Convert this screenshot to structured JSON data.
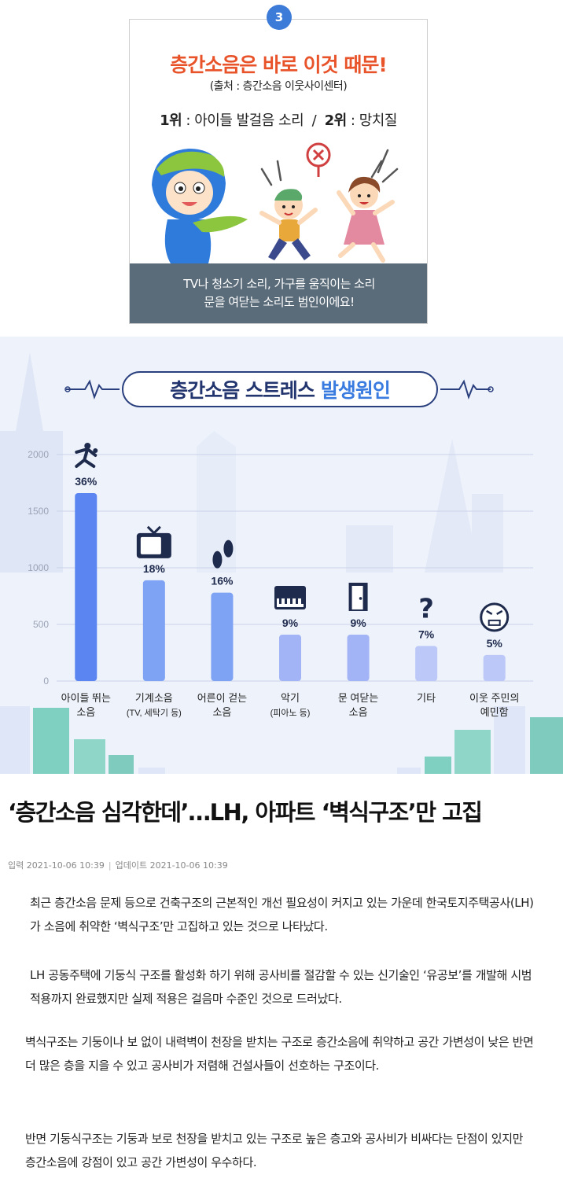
{
  "card1": {
    "badge": "3",
    "title": "층간소음은 바로 이것 때문!",
    "source": "(출처 : 층간소음 이웃사이센터)",
    "rank1_label": "1위",
    "rank1_text": " : 아이들 발걸음 소리  /  ",
    "rank2_label": "2위",
    "rank2_text": " : 망치질",
    "footer_line1": "TV나 청소기 소리, 가구를 움직이는 소리",
    "footer_line2": "문을 여닫는 소리도 범인이에요!",
    "colors": {
      "title": "#e8532a",
      "badge": "#3d7bd9",
      "footer": "#5a6b7a"
    }
  },
  "infographic": {
    "title_main": "층간소음 스트레스",
    "title_highlight": "발생원인",
    "colors": {
      "title": "#23356e",
      "highlight": "#3a7be0"
    }
  },
  "chart_data": {
    "type": "bar",
    "title": "층간소음 스트레스 발생원인",
    "ylim": [
      0,
      2000
    ],
    "yticks": [
      "0",
      "500",
      "1000",
      "1500",
      "2000"
    ],
    "grid": true,
    "categories": [
      [
        "아이들 뛰는",
        "소음"
      ],
      [
        "기계소음",
        "(TV, 세탁기 등)"
      ],
      [
        "어른이 걷는",
        "소음"
      ],
      [
        "악기",
        "(피아노 등)"
      ],
      [
        "문 여닫는",
        "소음"
      ],
      [
        "기타"
      ],
      [
        "이웃 주민의",
        "예민함"
      ]
    ],
    "values": [
      1660,
      890,
      780,
      410,
      410,
      310,
      230
    ],
    "labels": [
      "36%",
      "18%",
      "16%",
      "9%",
      "9%",
      "7%",
      "5%"
    ],
    "icons": [
      "running-kids-icon",
      "tv-icon",
      "footprints-icon",
      "piano-icon",
      "door-icon",
      "question-icon",
      "angry-face-icon"
    ],
    "colors": [
      "#5b86f2",
      "#7ea2f4",
      "#7ea2f4",
      "#a3b4f6",
      "#a3b4f6",
      "#bcc8f8",
      "#bcc8f8"
    ]
  },
  "article": {
    "headline": "‘층간소음 심각한데’…LH, 아파트 ‘벽식구조’만 고집",
    "meta_input": "입력 2021-10-06 10:39",
    "meta_sep": "|",
    "meta_update": "업데이트 2021-10-06 10:39",
    "p1": "최근 층간소음 문제 등으로 건축구조의 근본적인 개선 필요성이 커지고 있는 가운데 한국토지주택공사(LH)가 소음에 취약한 ‘벽식구조’만 고집하고 있는 것으로 나타났다.",
    "p2": "LH 공동주택에 기둥식 구조를 활성화 하기 위해 공사비를 절감할 수 있는 신기술인 ‘유공보’를 개발해 시범적용까지 완료했지만 실제 적용은 걸음마 수준인 것으로 드러났다.",
    "p3": "벽식구조는 기둥이나 보 없이 내력벽이 천장을 받치는 구조로 층간소음에 취약하고 공간 가변성이 낮은 반면 더 많은 층을 지을 수 있고 공사비가 저렴해 건설사들이 선호하는 구조이다.",
    "p4": "반면 기둥식구조는 기둥과 보로 천장을 받치고 있는 구조로 높은 층고와 공사비가 비싸다는 단점이 있지만 층간소음에 강점이 있고 공간 가변성이 우수하다."
  }
}
